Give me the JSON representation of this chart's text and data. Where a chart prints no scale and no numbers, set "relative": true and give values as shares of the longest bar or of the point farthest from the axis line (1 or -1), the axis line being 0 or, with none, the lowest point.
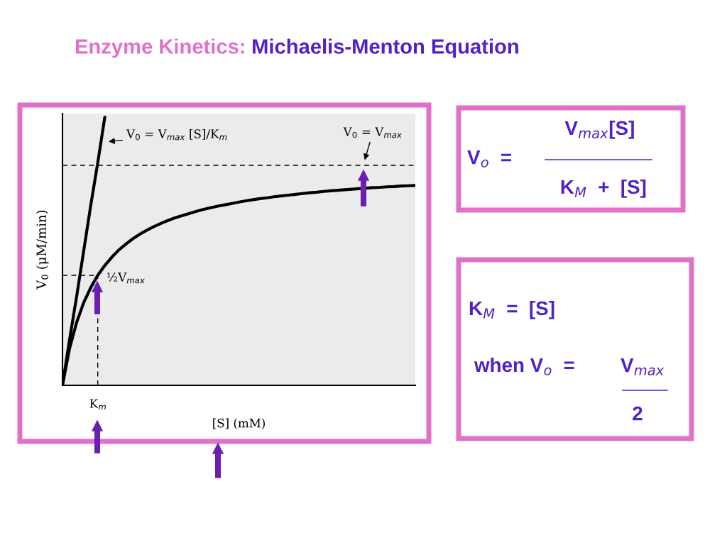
{
  "chart_data": {
    "type": "line",
    "relative": true,
    "title": "Enzyme Kinetics:",
    "subtitle": "Michaelis-Menton Equation",
    "xlabel": "[S] (mM)",
    "ylabel": "V$_{0}$ (μM/min)",
    "categories": [
      null,
      null,
      null,
      null,
      null,
      null,
      null,
      null,
      null,
      null,
      null,
      null,
      null,
      null,
      null,
      null,
      null,
      null,
      null,
      null,
      null,
      null,
      null,
      null,
      null,
      null,
      null,
      null,
      null,
      null,
      null,
      null,
      null,
      null,
      null,
      null,
      null,
      null,
      null,
      null,
      null,
      null,
      null,
      null,
      null,
      null,
      null,
      null,
      null,
      null,
      null
    ],
    "series": [
      {
        "color": "#000000",
        "line_style": "solid",
        "values": [
          0,
          0.137,
          0.234,
          0.308,
          0.364,
          0.41,
          0.447,
          0.478,
          0.505,
          0.527,
          0.547,
          0.564,
          0.579,
          0.592,
          0.604,
          0.615,
          0.625,
          0.633,
          0.641,
          0.649,
          0.656,
          0.662,
          0.668,
          0.673,
          0.678,
          0.683,
          0.688,
          0.692,
          0.696,
          0.699,
          0.703,
          0.706,
          0.709,
          0.712,
          0.715,
          0.718,
          0.72,
          0.723,
          0.725,
          0.727,
          0.729,
          0.731,
          0.733,
          0.735,
          0.737,
          0.738,
          0.74,
          0.741,
          0.743,
          0.744,
          0.745
        ]
      },
      {
        "color": "#000000",
        "line_style": "solid",
        "values": [
          0,
          0.17,
          0.33,
          0.5,
          0.67,
          0.83,
          1,
          null,
          null,
          null,
          null,
          null,
          null,
          null,
          null,
          null,
          null,
          null,
          null,
          null,
          null,
          null,
          null,
          null,
          null,
          null,
          null,
          null,
          null,
          null,
          null,
          null,
          null,
          null,
          null,
          null,
          null,
          null,
          null,
          null,
          null,
          null,
          null,
          null,
          null,
          null,
          null,
          null,
          null,
          null,
          null
        ]
      },
      {
        "color": "#000000",
        "line_style": "dashed",
        "values": [
          0.41,
          0.41,
          0.41,
          0.41,
          0.41,
          0.41,
          null,
          null,
          null,
          null,
          null,
          null,
          null,
          null,
          null,
          null,
          null,
          null,
          null,
          null,
          null,
          null,
          null,
          null,
          null,
          null,
          null,
          null,
          null,
          null,
          null,
          null,
          null,
          null,
          null,
          null,
          null,
          null,
          null,
          null,
          null,
          null,
          null,
          null,
          null,
          null,
          null,
          null,
          null,
          null,
          null
        ]
      }
    ],
    "ref_lines": [
      {
        "axis": "y",
        "value": 0.82,
        "line_style": "dashed",
        "color": "#000000"
      }
    ],
    "annotations": [
      "V$_{0}$ = V$_{max}$ [S]/K$_{m}$",
      "V$_{0}$ = V$_{max}$",
      "½V$_{max}$",
      "K$_{m}$",
      "V$_{o}$  =",
      "V$_{max}$[S]",
      "K$_{M}$  +  [S]",
      "K$_{M}$  =  [S]",
      "when V$_{o}$  =",
      "V$_{max}$",
      "2"
    ],
    "grid": false,
    "legend": false,
    "marker": "none"
  }
}
